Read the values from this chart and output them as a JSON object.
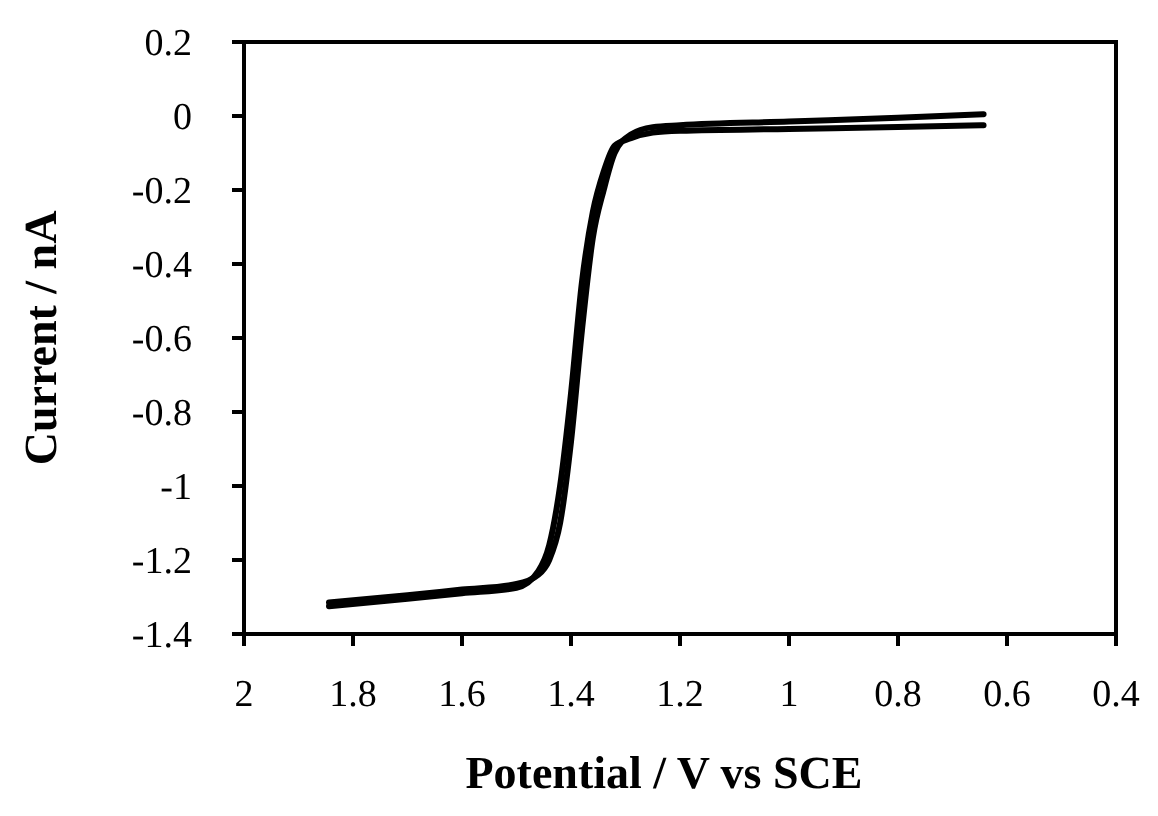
{
  "chart_data": {
    "type": "line",
    "xlabel": "Potential / V vs SCE",
    "ylabel": "Current / nA",
    "xlim": [
      2,
      0.4
    ],
    "xticks": [
      2,
      1.8,
      1.6,
      1.4,
      1.2,
      1,
      0.8,
      0.6,
      0.4
    ],
    "ylim": [
      -1.4,
      0.2
    ],
    "yticks": [
      0.2,
      0,
      -0.2,
      -0.4,
      -0.6,
      -0.8,
      -1,
      -1.2,
      -1.4
    ],
    "marker": "none",
    "line_style": "solid",
    "series": [
      {
        "color": "#000000",
        "x": [
          0.643,
          0.8,
          1.0,
          1.2,
          1.25,
          1.29,
          1.32,
          1.34,
          1.36,
          1.38,
          1.4,
          1.42,
          1.44,
          1.46,
          1.5,
          1.6,
          1.7,
          1.844
        ],
        "values": [
          0.005,
          -0.005,
          -0.015,
          -0.025,
          -0.03,
          -0.05,
          -0.1,
          -0.2,
          -0.33,
          -0.58,
          -0.88,
          -1.1,
          -1.2,
          -1.24,
          -1.265,
          -1.28,
          -1.295,
          -1.315
        ]
      },
      {
        "color": "#000000",
        "x": [
          0.643,
          0.8,
          1.0,
          1.2,
          1.25,
          1.29,
          1.32,
          1.34,
          1.36,
          1.38,
          1.4,
          1.42,
          1.44,
          1.46,
          1.5,
          1.6,
          1.7,
          1.844
        ],
        "values": [
          -0.025,
          -0.03,
          -0.035,
          -0.04,
          -0.045,
          -0.06,
          -0.08,
          -0.15,
          -0.26,
          -0.45,
          -0.75,
          -1.0,
          -1.16,
          -1.23,
          -1.275,
          -1.29,
          -1.305,
          -1.325
        ]
      }
    ]
  }
}
